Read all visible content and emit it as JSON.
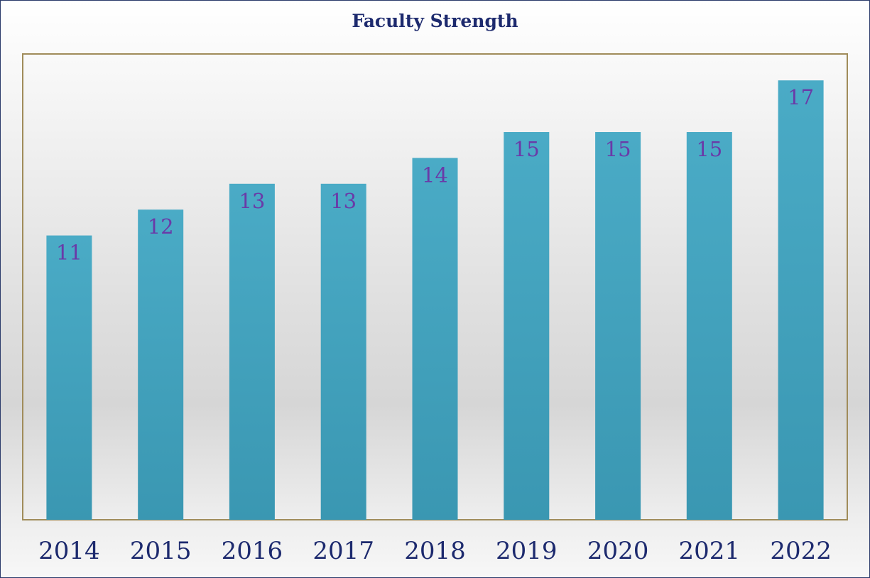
{
  "chart_data": {
    "type": "bar",
    "title": "Faculty Strength",
    "categories": [
      "2014",
      "2015",
      "2016",
      "2017",
      "2018",
      "2019",
      "2020",
      "2021",
      "2022"
    ],
    "values": [
      11,
      12,
      13,
      13,
      14,
      15,
      15,
      15,
      17
    ],
    "xlabel": "",
    "ylabel": "",
    "ylim": [
      0,
      18
    ],
    "grid": false,
    "legend": "none",
    "data_labels": true,
    "colors": {
      "bar": "#44a3bd",
      "bar_dark": "#3a97b2",
      "data_label": "#6a3aa8",
      "tick_label": "#1d2a6e",
      "plot_border": "#a08c5a"
    }
  }
}
